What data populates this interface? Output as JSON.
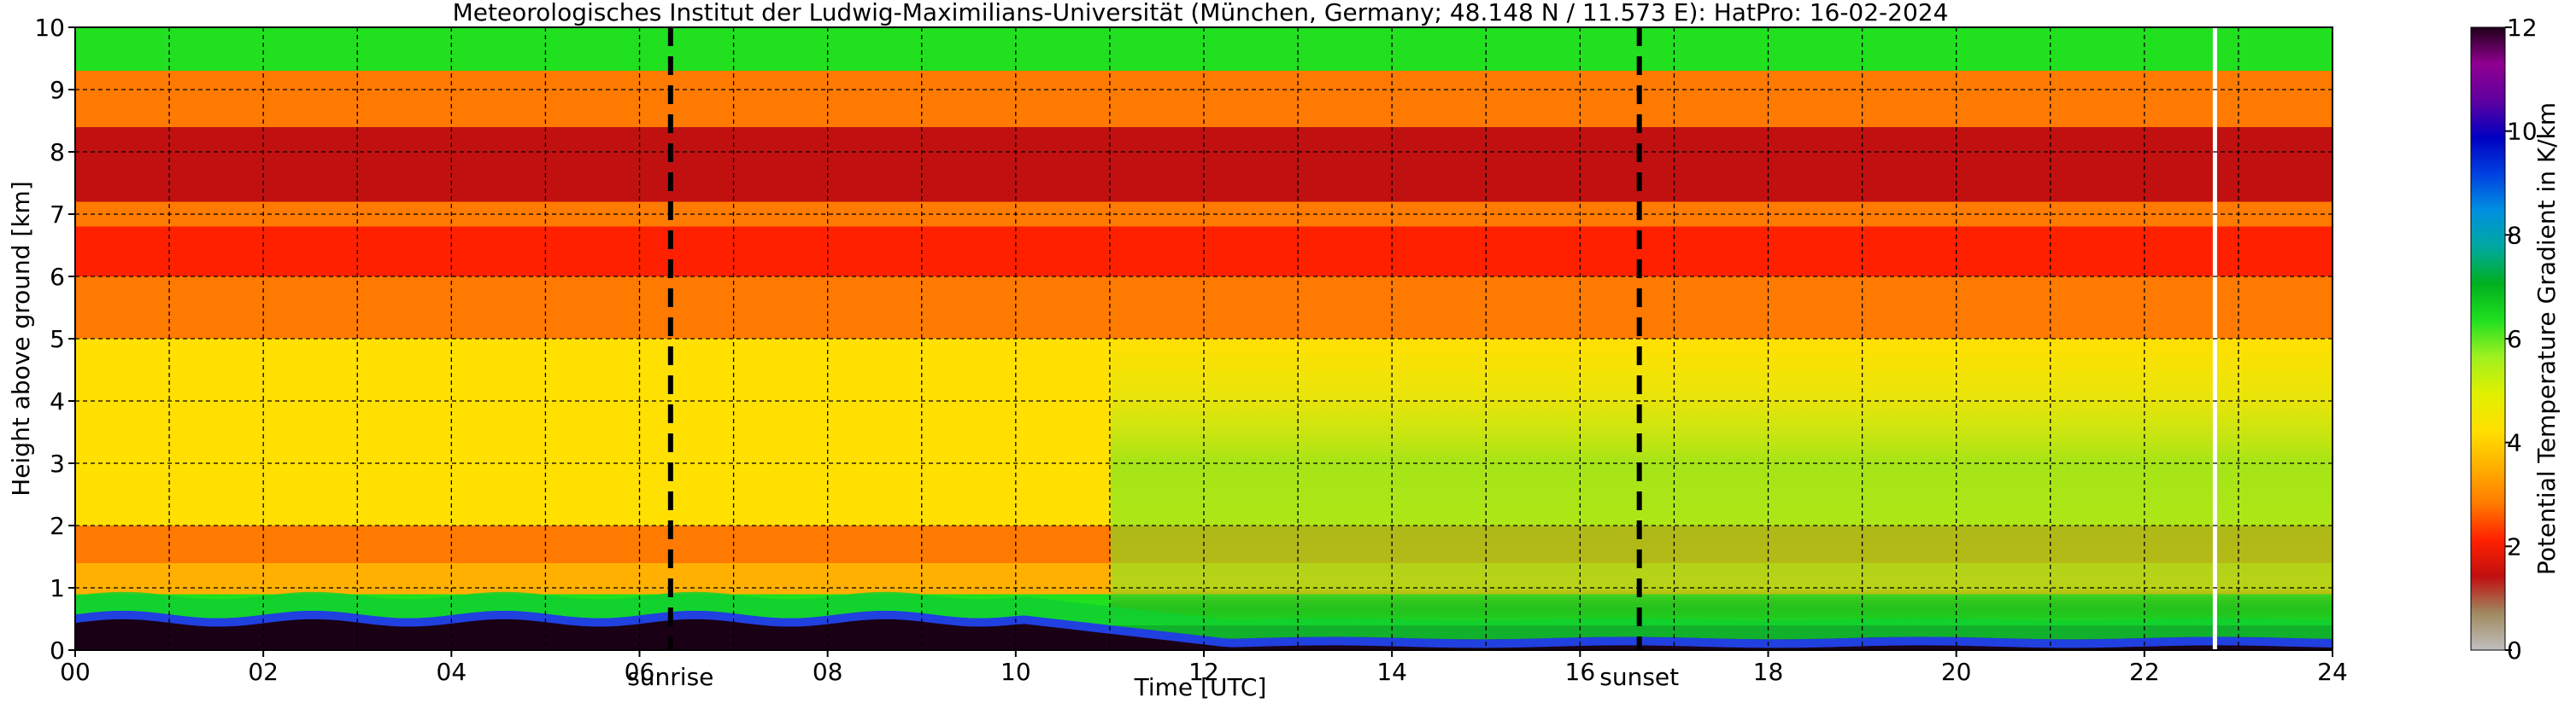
{
  "chart_data": {
    "type": "heatmap",
    "title": "Meteorologisches Institut der Ludwig-Maximilians-Universität (München, Germany; 48.148 N / 11.573 E):    HatPro: 16-02-2024",
    "xlabel": "Time [UTC]",
    "ylabel": "Height above ground [km]",
    "xlim": [
      0,
      24
    ],
    "ylim": [
      0,
      10
    ],
    "x_ticks": [
      "00",
      "02",
      "04",
      "06",
      "08",
      "10",
      "12",
      "14",
      "16",
      "18",
      "20",
      "22",
      "24"
    ],
    "y_ticks": [
      "0",
      "1",
      "2",
      "3",
      "4",
      "5",
      "6",
      "7",
      "8",
      "9",
      "10"
    ],
    "grid": true,
    "colorbar": {
      "label": "Potential Temperature Gradient in K/km",
      "range": [
        0,
        12
      ],
      "ticks": [
        "0",
        "2",
        "4",
        "6",
        "8",
        "10",
        "12"
      ],
      "colors": [
        "#c0c0c0",
        "#a08a60",
        "#c01010",
        "#ff2000",
        "#ff7a00",
        "#ffb000",
        "#ffe000",
        "#e0f000",
        "#a0f020",
        "#20e020",
        "#00b020",
        "#00a8a0",
        "#0090e0",
        "#0040e0",
        "#0000c0",
        "#6000a0",
        "#900090",
        "#20001a"
      ]
    },
    "events": [
      {
        "label": "sunrise",
        "time_utc": 6.33
      },
      {
        "label": "sunset",
        "time_utc": 16.63
      }
    ],
    "missing_data_time_utc": 22.75,
    "description_layers_km": [
      {
        "from": 0.0,
        "to": 0.4,
        "value": 12
      },
      {
        "from": 0.4,
        "to": 0.9,
        "value": 6
      },
      {
        "from": 0.9,
        "to": 1.4,
        "value": 3.8
      },
      {
        "from": 1.4,
        "to": 2.0,
        "value": 2.5
      },
      {
        "from": 2.0,
        "to": 5.0,
        "value": 4.0
      },
      {
        "from": 5.0,
        "to": 6.0,
        "value": 3.0
      },
      {
        "from": 6.0,
        "to": 6.8,
        "value": 1.8
      },
      {
        "from": 6.8,
        "to": 7.2,
        "value": 2.6
      },
      {
        "from": 7.2,
        "to": 8.4,
        "value": 1.6
      },
      {
        "from": 8.4,
        "to": 9.3,
        "value": 2.8
      },
      {
        "from": 9.3,
        "to": 10.0,
        "value": 6.0
      }
    ]
  }
}
